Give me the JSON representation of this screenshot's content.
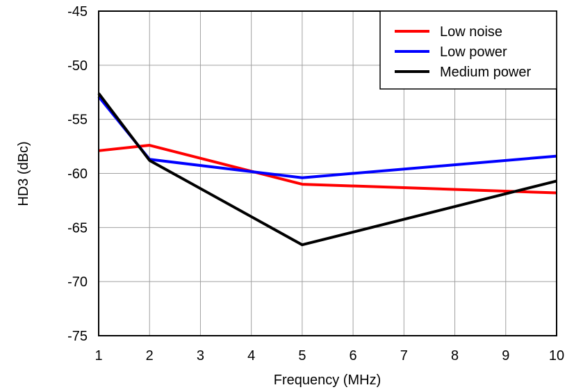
{
  "chart_data": {
    "type": "line",
    "title": "",
    "xlabel": "Frequency (MHz)",
    "ylabel": "HD3 (dBc)",
    "xlim": [
      1,
      10
    ],
    "ylim": [
      -75,
      -45
    ],
    "xticks": [
      1,
      2,
      3,
      4,
      5,
      6,
      7,
      8,
      9,
      10
    ],
    "yticks": [
      -45,
      -50,
      -55,
      -60,
      -65,
      -70,
      -75
    ],
    "grid": true,
    "legend_position": "top-right",
    "series": [
      {
        "name": "Low noise",
        "color": "#ff0000",
        "x": [
          1,
          2,
          5,
          10
        ],
        "y": [
          -57.9,
          -57.4,
          -61.0,
          -61.8
        ]
      },
      {
        "name": "Low power",
        "color": "#0000ff",
        "x": [
          1,
          2,
          5,
          10
        ],
        "y": [
          -52.9,
          -58.7,
          -60.4,
          -58.4
        ]
      },
      {
        "name": "Medium power",
        "color": "#000000",
        "x": [
          1,
          2,
          5,
          10
        ],
        "y": [
          -52.6,
          -58.8,
          -66.6,
          -60.7
        ]
      }
    ]
  }
}
